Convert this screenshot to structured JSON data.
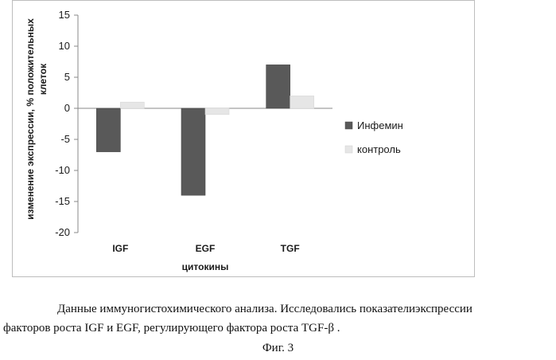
{
  "chart_data": {
    "type": "bar",
    "categories": [
      "IGF",
      "EGF",
      "TGF"
    ],
    "series": [
      {
        "name": "Инфемин",
        "values": [
          -7,
          -14,
          7
        ],
        "color": "#595959"
      },
      {
        "name": "контроль",
        "values": [
          1,
          -1,
          2
        ],
        "color": "#e6e6e6"
      }
    ],
    "xlabel": "цитокины",
    "ylabel": "изменение экспрессии, % положительных клеток",
    "ylim": [
      -20,
      15
    ],
    "yticks": [
      -20,
      -15,
      -10,
      -5,
      0,
      5,
      10,
      15
    ],
    "grid": false,
    "legend_position": "right"
  },
  "caption": {
    "line1": "Данные иммуногистохимического анализа. Исследовались показателиэкспрессии",
    "line2": "факторов роста IGF и EGF, регулирующего фактора роста TGF-β ."
  },
  "figure_label": "Фиг.  3"
}
